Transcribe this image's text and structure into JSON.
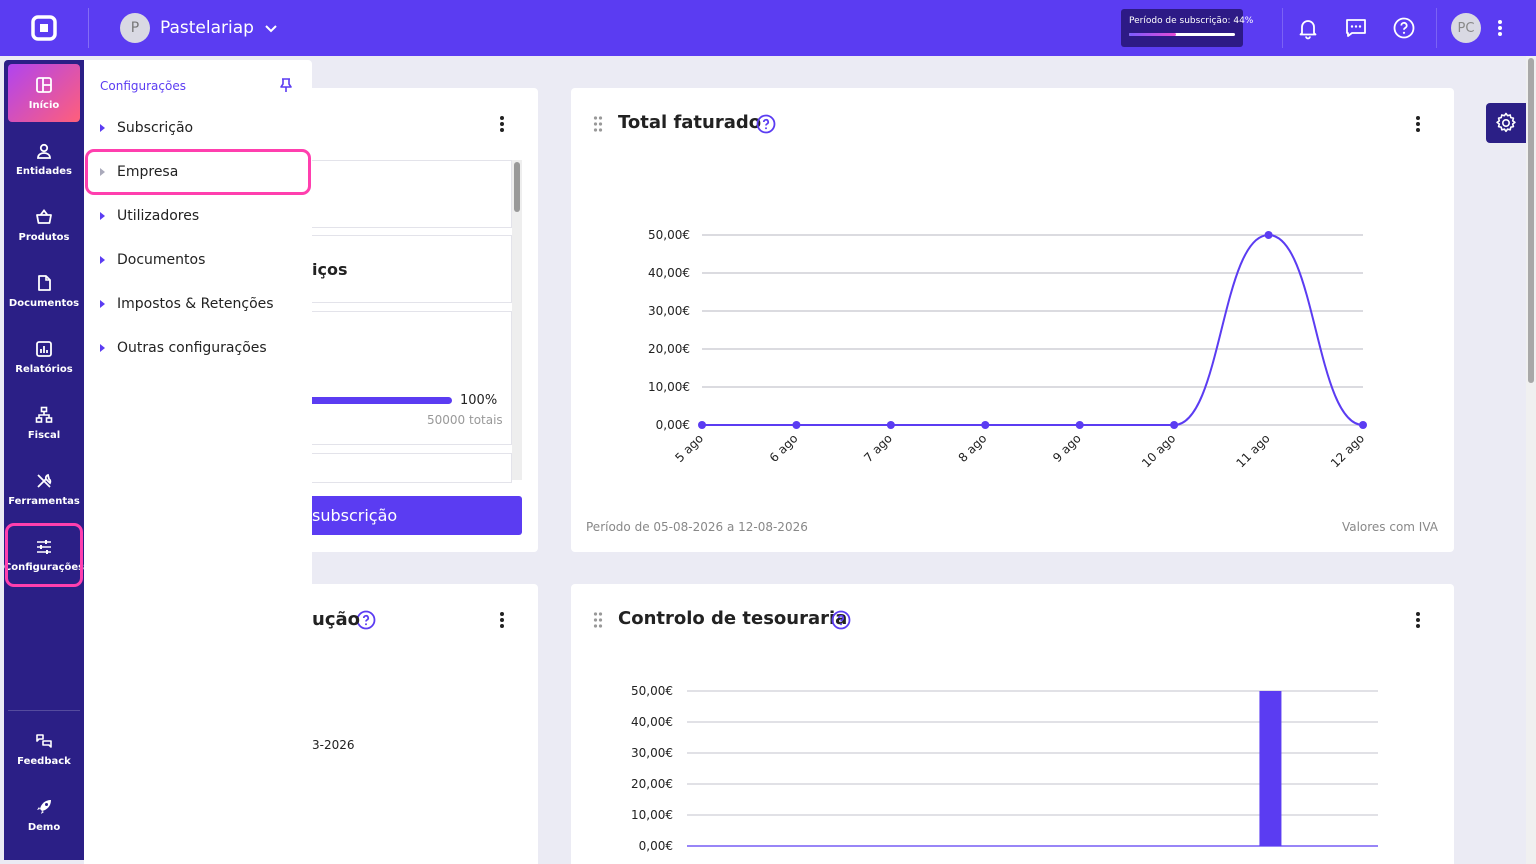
{
  "topbar": {
    "company_initial": "P",
    "company_name": "Pastelariap",
    "subscription_label": "Período de subscrição: 44%",
    "subscription_progress": 0.44,
    "user_initials": "PC"
  },
  "nav": {
    "items": [
      {
        "label": "Início",
        "icon": "dashboard-icon",
        "active": true
      },
      {
        "label": "Entidades",
        "icon": "person-icon"
      },
      {
        "label": "Produtos",
        "icon": "basket-icon"
      },
      {
        "label": "Documentos",
        "icon": "document-icon"
      },
      {
        "label": "Relatórios",
        "icon": "report-icon"
      },
      {
        "label": "Fiscal",
        "icon": "fiscal-icon"
      },
      {
        "label": "Ferramentas",
        "icon": "tools-icon"
      },
      {
        "label": "Configurações",
        "icon": "sliders-icon",
        "highlighted": true
      }
    ],
    "bottom": [
      {
        "label": "Feedback",
        "icon": "feedback-icon"
      },
      {
        "label": "Demo",
        "icon": "rocket-icon"
      }
    ]
  },
  "flyout": {
    "title": "Configurações",
    "items": [
      "Subscrição",
      "Empresa",
      "Utilizadores",
      "Documentos",
      "Impostos & Retenções",
      "Outras configurações"
    ],
    "highlighted": "Empresa"
  },
  "left_card": {
    "partial_heading": "iços",
    "progress_pct": "100%",
    "progress_value": 1.0,
    "totals": "50000 totais",
    "cta_label": "subscrição"
  },
  "left_card2": {
    "partial_title": "ução",
    "partial_date": "3-2026"
  },
  "card_total": {
    "title": "Total faturado",
    "footer_left": "Período de 05-08-2026 a 12-08-2026",
    "footer_right": "Valores com IVA"
  },
  "card_treasury": {
    "title": "Controlo de tesouraria"
  },
  "colors": {
    "brand": "#5b3cf2",
    "nav": "#2b1f86",
    "highlight": "#ff3fae"
  },
  "chart_data": [
    {
      "type": "line",
      "title": "Total faturado",
      "categories": [
        "5 ago",
        "6 ago",
        "7 ago",
        "8 ago",
        "9 ago",
        "10 ago",
        "11 ago",
        "12 ago"
      ],
      "values": [
        0,
        0,
        0,
        0,
        0,
        0,
        50,
        0
      ],
      "yticks": [
        "0,00€",
        "10,00€",
        "20,00€",
        "30,00€",
        "40,00€",
        "50,00€"
      ],
      "ylim": [
        0,
        50
      ]
    },
    {
      "type": "bar",
      "title": "Controlo de tesouraria",
      "categories": [
        "",
        "",
        "",
        "",
        "",
        "",
        "",
        ""
      ],
      "values": [
        0,
        0,
        0,
        0,
        0,
        0,
        50,
        0
      ],
      "yticks": [
        "0,00€",
        "10,00€",
        "20,00€",
        "30,00€",
        "40,00€",
        "50,00€"
      ],
      "ylim": [
        0,
        50
      ]
    }
  ]
}
